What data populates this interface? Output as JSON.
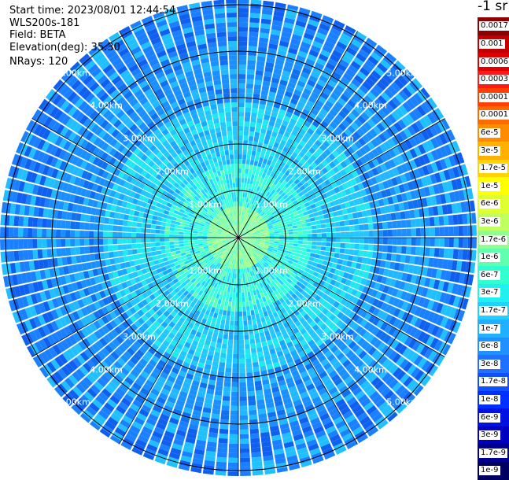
{
  "info": {
    "start_time": "Start time: 2023/08/01 12:44:54",
    "instrument": "WLS200s-181",
    "field": "Field: BETA",
    "elevation": "Elevation(deg): 35.30",
    "nrays": "NRays: 120"
  },
  "rings": {
    "labels": [
      "1.00km",
      "2.00km",
      "3.00km",
      "4.00km",
      "5.00km"
    ]
  },
  "colorbar": {
    "unit": "-1 sr",
    "labels": [
      "0.0017",
      "0.001",
      "0.0006",
      "0.0003",
      "0.00017",
      "0.0001",
      "6e-5",
      "3e-5",
      "1.7e-5",
      "1e-5",
      "6e-6",
      "3e-6",
      "1.7e-6",
      "1e-6",
      "6e-7",
      "3e-7",
      "1.7e-7",
      "1e-7",
      "6e-8",
      "3e-8",
      "1.7e-8",
      "1e-8",
      "6e-9",
      "3e-9",
      "1.7e-9",
      "1e-9"
    ],
    "colors": [
      "#8b0000",
      "#c00000",
      "#e00000",
      "#ff1a1a",
      "#ff4000",
      "#ff6a00",
      "#ff8c00",
      "#ffb000",
      "#ffd400",
      "#ffff00",
      "#e0ff30",
      "#c0ff60",
      "#90ff90",
      "#60ffb0",
      "#30ffd0",
      "#20f0f0",
      "#20d0ff",
      "#20b0ff",
      "#2090ff",
      "#2070ff",
      "#1050ff",
      "#0030ff",
      "#0010e0",
      "#0000c0",
      "#000090",
      "#000060"
    ]
  }
}
